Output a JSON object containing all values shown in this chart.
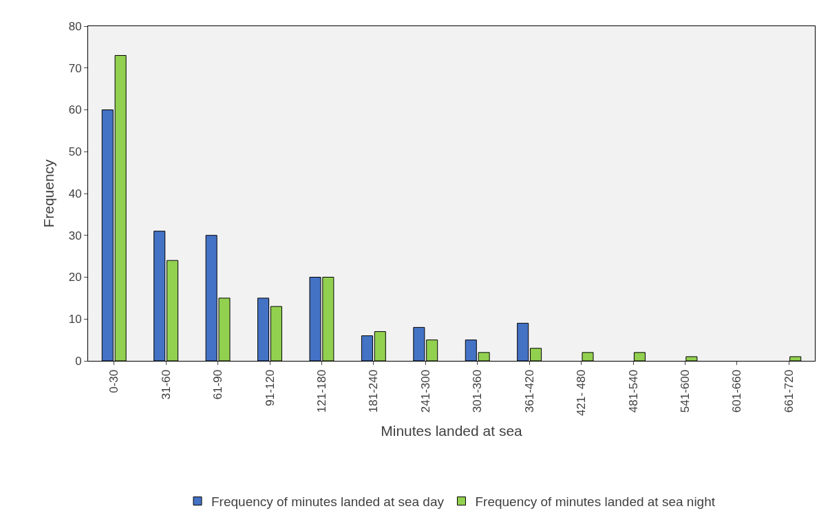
{
  "chart_data": {
    "type": "bar",
    "xlabel": "Minutes landed at sea",
    "ylabel": "Frequency",
    "categories": [
      "0-30",
      "31-60",
      "61-90",
      "91-120",
      "121-180",
      "181-240",
      "241-300",
      "301-360",
      "361-420",
      "421- 480",
      "481-540",
      "541-600",
      "601-660",
      "661-720"
    ],
    "series": [
      {
        "name": "Frequency of minutes landed at sea day",
        "color": "#4472c4",
        "values": [
          60,
          31,
          30,
          15,
          20,
          6,
          8,
          5,
          9,
          null,
          null,
          null,
          null,
          null
        ]
      },
      {
        "name": "Frequency of minutes landed at sea night",
        "color": "#92d050",
        "values": [
          73,
          24,
          15,
          13,
          20,
          7,
          5,
          2,
          3,
          2,
          2,
          1,
          null,
          1
        ]
      }
    ],
    "ylim": [
      0,
      80
    ],
    "yticks": [
      0,
      10,
      20,
      30,
      40,
      50,
      60,
      70,
      80
    ],
    "grid": false,
    "legend": "bottom"
  }
}
